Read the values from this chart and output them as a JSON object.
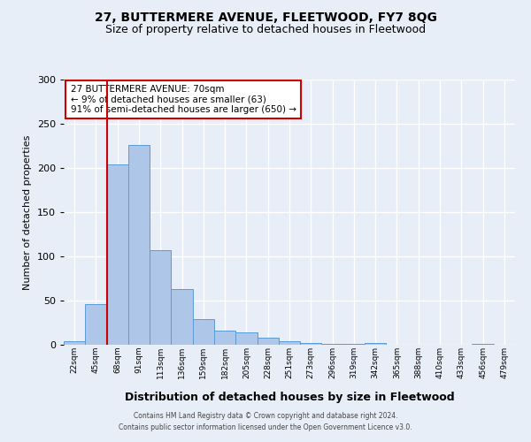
{
  "title": "27, BUTTERMERE AVENUE, FLEETWOOD, FY7 8QG",
  "subtitle": "Size of property relative to detached houses in Fleetwood",
  "xlabel": "Distribution of detached houses by size in Fleetwood",
  "ylabel": "Number of detached properties",
  "bar_labels": [
    "22sqm",
    "45sqm",
    "68sqm",
    "91sqm",
    "113sqm",
    "136sqm",
    "159sqm",
    "182sqm",
    "205sqm",
    "228sqm",
    "251sqm",
    "273sqm",
    "296sqm",
    "319sqm",
    "342sqm",
    "365sqm",
    "388sqm",
    "410sqm",
    "433sqm",
    "456sqm",
    "479sqm"
  ],
  "bar_values": [
    4,
    46,
    204,
    226,
    107,
    63,
    29,
    16,
    14,
    8,
    4,
    2,
    1,
    1,
    2,
    0,
    0,
    0,
    0,
    1,
    0
  ],
  "bar_color": "#aec6e8",
  "bar_edge_color": "#5b9bd5",
  "ylim": [
    0,
    300
  ],
  "yticks": [
    0,
    50,
    100,
    150,
    200,
    250,
    300
  ],
  "property_line_index": 2,
  "property_line_color": "#cc0000",
  "annotation_title": "27 BUTTERMERE AVENUE: 70sqm",
  "annotation_line1": "← 9% of detached houses are smaller (63)",
  "annotation_line2": "91% of semi-detached houses are larger (650) →",
  "annotation_box_color": "#cc0000",
  "background_color": "#e8eef7",
  "grid_color": "#ffffff",
  "footer_line1": "Contains HM Land Registry data © Crown copyright and database right 2024.",
  "footer_line2": "Contains public sector information licensed under the Open Government Licence v3.0."
}
